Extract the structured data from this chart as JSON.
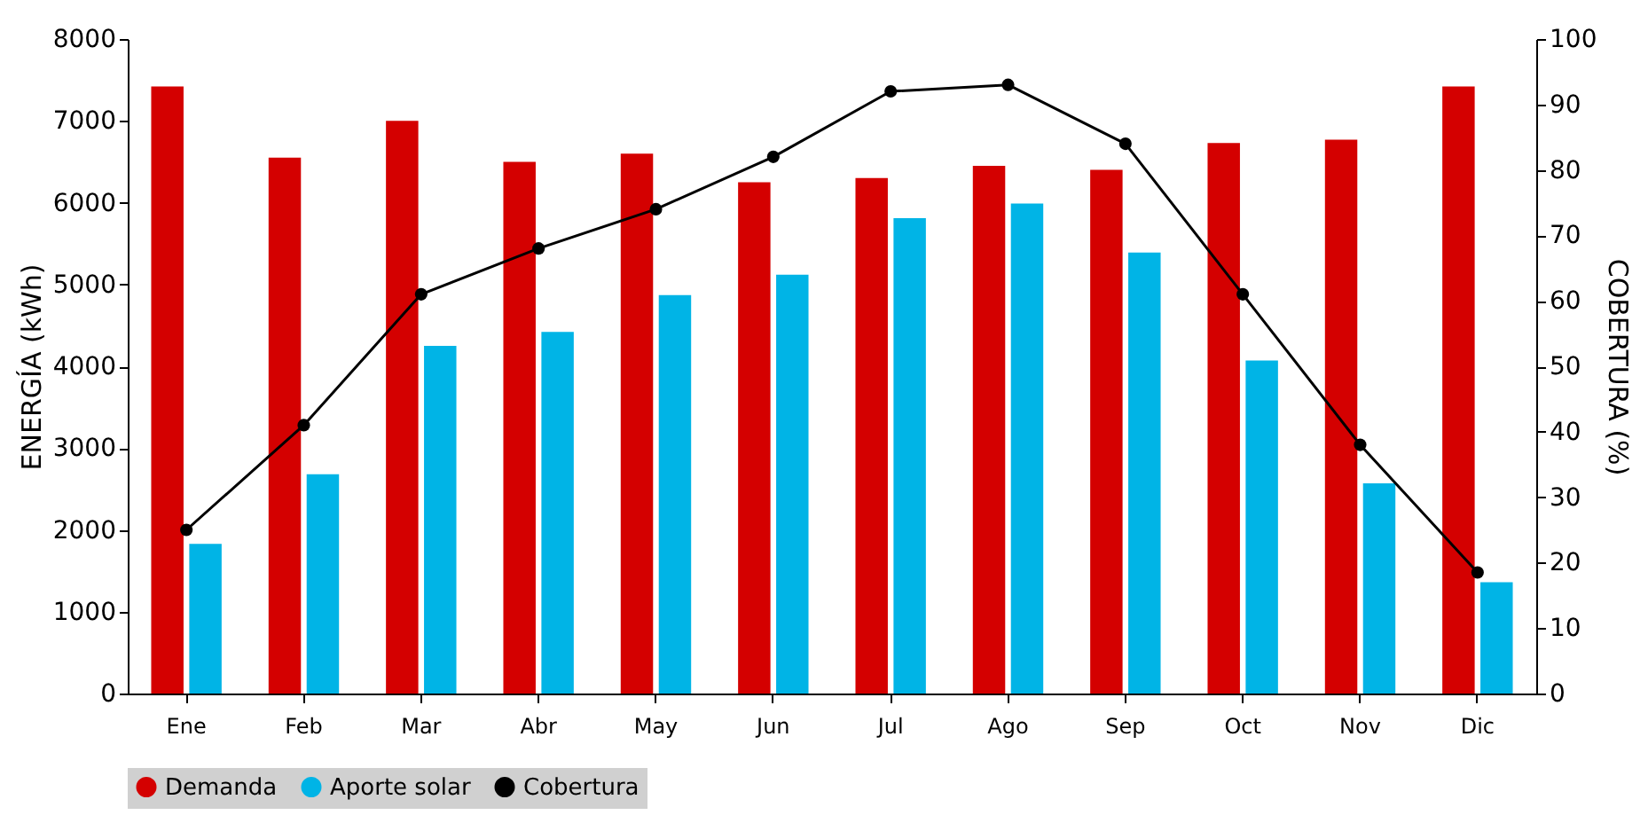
{
  "chart_data": {
    "type": "bar",
    "xlabel": null,
    "ylabel": "ENERGÍA (kWh)",
    "y2label": "COBERTURA (%)",
    "categories": [
      "Ene",
      "Feb",
      "Mar",
      "Abr",
      "May",
      "Jun",
      "Jul",
      "Ago",
      "Sep",
      "Oct",
      "Nov",
      "Dic"
    ],
    "series": [
      {
        "name": "Demanda",
        "color": "#d40000",
        "values": [
          7420,
          6550,
          7000,
          6500,
          6600,
          6250,
          6300,
          6450,
          6400,
          6730,
          6770,
          7420
        ]
      },
      {
        "name": "Aporte solar",
        "color": "#00b4e6",
        "values": [
          1830,
          2680,
          4250,
          4420,
          4870,
          5120,
          5810,
          5990,
          5390,
          4070,
          2570,
          1360
        ]
      },
      {
        "name": "Cobertura",
        "type": "line",
        "axis": "y2",
        "color": "#000000",
        "values": [
          25,
          41,
          61,
          68,
          74,
          82,
          92,
          93,
          84,
          61,
          38,
          18.5
        ]
      }
    ],
    "ylim": [
      0,
      8000
    ],
    "yticks": [
      0,
      1000,
      2000,
      3000,
      4000,
      5000,
      6000,
      7000,
      8000
    ],
    "y2lim": [
      0,
      100
    ],
    "y2ticks": [
      0,
      10,
      20,
      30,
      40,
      50,
      60,
      70,
      80,
      90,
      100
    ],
    "grid": false,
    "legend": "bottom",
    "marker": "circle",
    "line_style": "solid"
  }
}
